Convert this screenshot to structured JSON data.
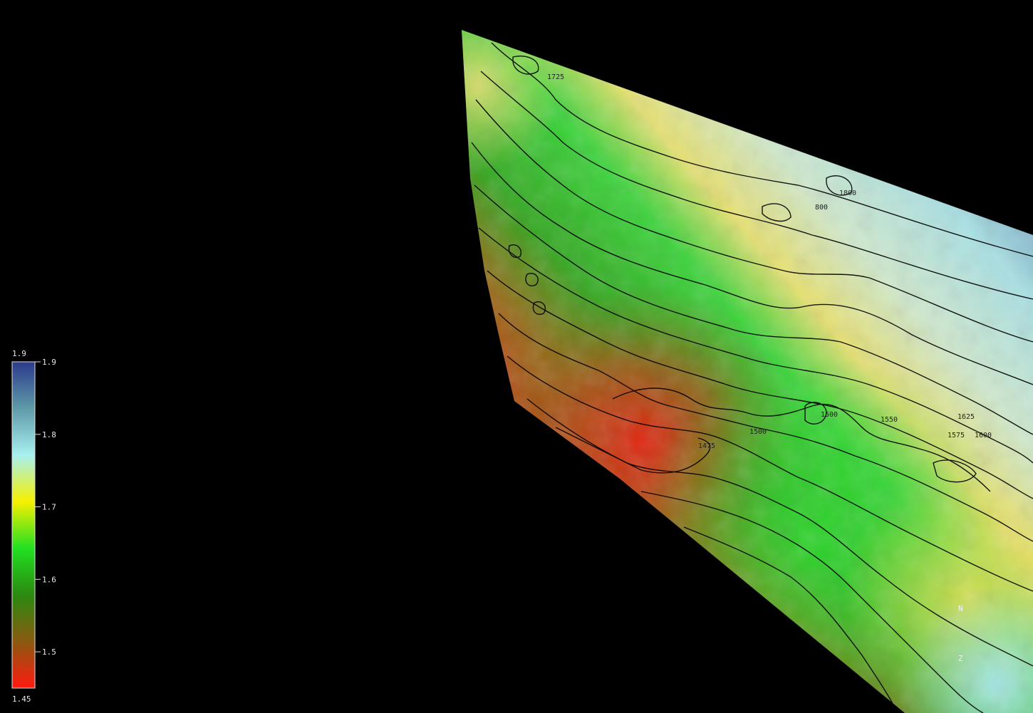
{
  "colorbar": {
    "max_label": "1.9",
    "min_label": "1.45",
    "ticks": [
      "1.9",
      "1.8",
      "1.7",
      "1.6",
      "1.5"
    ],
    "stops": [
      "#2b3a8c",
      "#5f9aa8",
      "#a8f0f0",
      "#f6f000",
      "#22e022",
      "#2a8a10",
      "#8a5a10",
      "#ff1a10"
    ]
  },
  "surface": {
    "contour_labels": [
      {
        "text": "1725"
      },
      {
        "text": "1800"
      },
      {
        "text": "800"
      },
      {
        "text": "1500"
      },
      {
        "text": "1550"
      },
      {
        "text": "1500"
      },
      {
        "text": "1475"
      },
      {
        "text": "1625"
      },
      {
        "text": "1575"
      },
      {
        "text": "1600"
      }
    ],
    "north_label": "N",
    "z_label": "Z"
  }
}
